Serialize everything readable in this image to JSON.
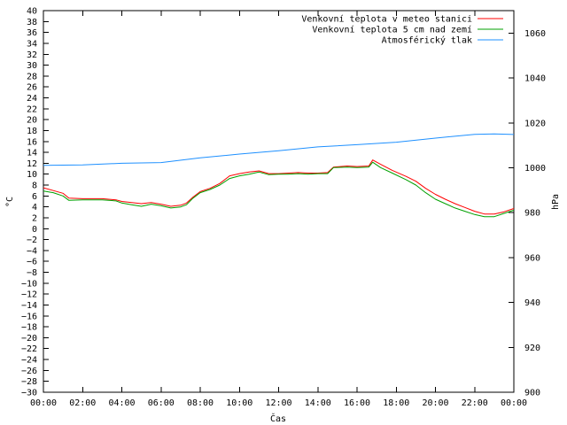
{
  "chart_data": {
    "type": "line",
    "xlabel": "Čas",
    "ylabel_left": "°C",
    "ylabel_right": "hPa",
    "x_ticks": [
      "00:00",
      "02:00",
      "04:00",
      "06:00",
      "08:00",
      "10:00",
      "12:00",
      "14:00",
      "16:00",
      "18:00",
      "20:00",
      "22:00",
      "00:00"
    ],
    "xlim_hours": [
      0,
      24
    ],
    "ylim_left": [
      -30,
      40
    ],
    "ylim_right": [
      900,
      1070
    ],
    "y_ticks_left": [
      40,
      38,
      36,
      34,
      32,
      30,
      28,
      26,
      24,
      22,
      20,
      18,
      16,
      14,
      12,
      10,
      8,
      6,
      4,
      2,
      0,
      -2,
      -4,
      -6,
      -8,
      -10,
      -12,
      -14,
      -16,
      -18,
      -20,
      -22,
      -24,
      -26,
      -28,
      -30
    ],
    "y_ticks_right": [
      1060,
      1040,
      1020,
      1000,
      980,
      960,
      940,
      920,
      900
    ],
    "grid": false,
    "legend_position": "top-right",
    "series": [
      {
        "name": "Venkovní teplota v meteo stanici",
        "axis": "left",
        "color": "#ff0000",
        "points": [
          [
            0,
            7.5
          ],
          [
            0.5,
            7
          ],
          [
            1,
            6.5
          ],
          [
            1.3,
            5.6
          ],
          [
            2,
            5.5
          ],
          [
            3,
            5.5
          ],
          [
            3.7,
            5.3
          ],
          [
            4,
            5
          ],
          [
            4.5,
            4.8
          ],
          [
            5,
            4.6
          ],
          [
            5.5,
            4.8
          ],
          [
            6,
            4.5
          ],
          [
            6.5,
            4.1
          ],
          [
            7,
            4.3
          ],
          [
            7.3,
            4.7
          ],
          [
            7.6,
            5.7
          ],
          [
            8,
            6.8
          ],
          [
            8.5,
            7.4
          ],
          [
            9,
            8.3
          ],
          [
            9.5,
            9.7
          ],
          [
            10,
            10.1
          ],
          [
            10.5,
            10.4
          ],
          [
            11,
            10.6
          ],
          [
            11.5,
            10.1
          ],
          [
            12,
            10.1
          ],
          [
            12.5,
            10.2
          ],
          [
            13,
            10.3
          ],
          [
            13.5,
            10.2
          ],
          [
            14,
            10.2
          ],
          [
            14.5,
            10.3
          ],
          [
            14.8,
            11.3
          ],
          [
            15.5,
            11.5
          ],
          [
            16,
            11.4
          ],
          [
            16.6,
            11.5
          ],
          [
            16.8,
            12.6
          ],
          [
            17.2,
            11.8
          ],
          [
            17.8,
            10.7
          ],
          [
            18.5,
            9.6
          ],
          [
            19,
            8.7
          ],
          [
            19.5,
            7.4
          ],
          [
            20,
            6.3
          ],
          [
            20.5,
            5.4
          ],
          [
            21,
            4.6
          ],
          [
            21.5,
            3.9
          ],
          [
            22,
            3.2
          ],
          [
            22.5,
            2.7
          ],
          [
            23,
            2.7
          ],
          [
            23.5,
            3.1
          ],
          [
            24,
            3.7
          ]
        ]
      },
      {
        "name": "Venkovní teplota 5 cm nad zemí",
        "axis": "left",
        "color": "#00a000",
        "points": [
          [
            0,
            6.9
          ],
          [
            0.5,
            6.6
          ],
          [
            1,
            6
          ],
          [
            1.3,
            5.2
          ],
          [
            2,
            5.3
          ],
          [
            3,
            5.3
          ],
          [
            3.7,
            5.1
          ],
          [
            4,
            4.7
          ],
          [
            4.5,
            4.4
          ],
          [
            5,
            4.1
          ],
          [
            5.5,
            4.5
          ],
          [
            6,
            4.2
          ],
          [
            6.5,
            3.8
          ],
          [
            7,
            4
          ],
          [
            7.3,
            4.4
          ],
          [
            7.6,
            5.5
          ],
          [
            8,
            6.6
          ],
          [
            8.5,
            7.2
          ],
          [
            9,
            8
          ],
          [
            9.5,
            9.2
          ],
          [
            10,
            9.7
          ],
          [
            10.5,
            10
          ],
          [
            11,
            10.4
          ],
          [
            11.5,
            9.9
          ],
          [
            12,
            10
          ],
          [
            12.5,
            10
          ],
          [
            13,
            10.1
          ],
          [
            13.5,
            10
          ],
          [
            14,
            10.1
          ],
          [
            14.5,
            10.1
          ],
          [
            14.8,
            11.2
          ],
          [
            15.5,
            11.3
          ],
          [
            16,
            11.2
          ],
          [
            16.6,
            11.3
          ],
          [
            16.8,
            12.2
          ],
          [
            17.2,
            11.2
          ],
          [
            17.8,
            10.2
          ],
          [
            18.5,
            9
          ],
          [
            19,
            8
          ],
          [
            19.5,
            6.6
          ],
          [
            20,
            5.4
          ],
          [
            20.5,
            4.6
          ],
          [
            21,
            3.8
          ],
          [
            21.5,
            3.2
          ],
          [
            22,
            2.6
          ],
          [
            22.5,
            2.2
          ],
          [
            23,
            2.2
          ],
          [
            23.5,
            2.8
          ],
          [
            24,
            3.4
          ]
        ]
      },
      {
        "name": "Atmosférický tlak",
        "axis": "right",
        "color": "#1e90ff",
        "points": [
          [
            0,
            1001.1
          ],
          [
            2,
            1001.3
          ],
          [
            4,
            1002
          ],
          [
            6,
            1002.3
          ],
          [
            8,
            1004.4
          ],
          [
            10,
            1006.1
          ],
          [
            12,
            1007.6
          ],
          [
            14,
            1009.3
          ],
          [
            16,
            1010.3
          ],
          [
            18,
            1011.4
          ],
          [
            20,
            1013.2
          ],
          [
            22,
            1014.9
          ],
          [
            23,
            1015.1
          ],
          [
            24,
            1014.8
          ]
        ]
      }
    ]
  }
}
